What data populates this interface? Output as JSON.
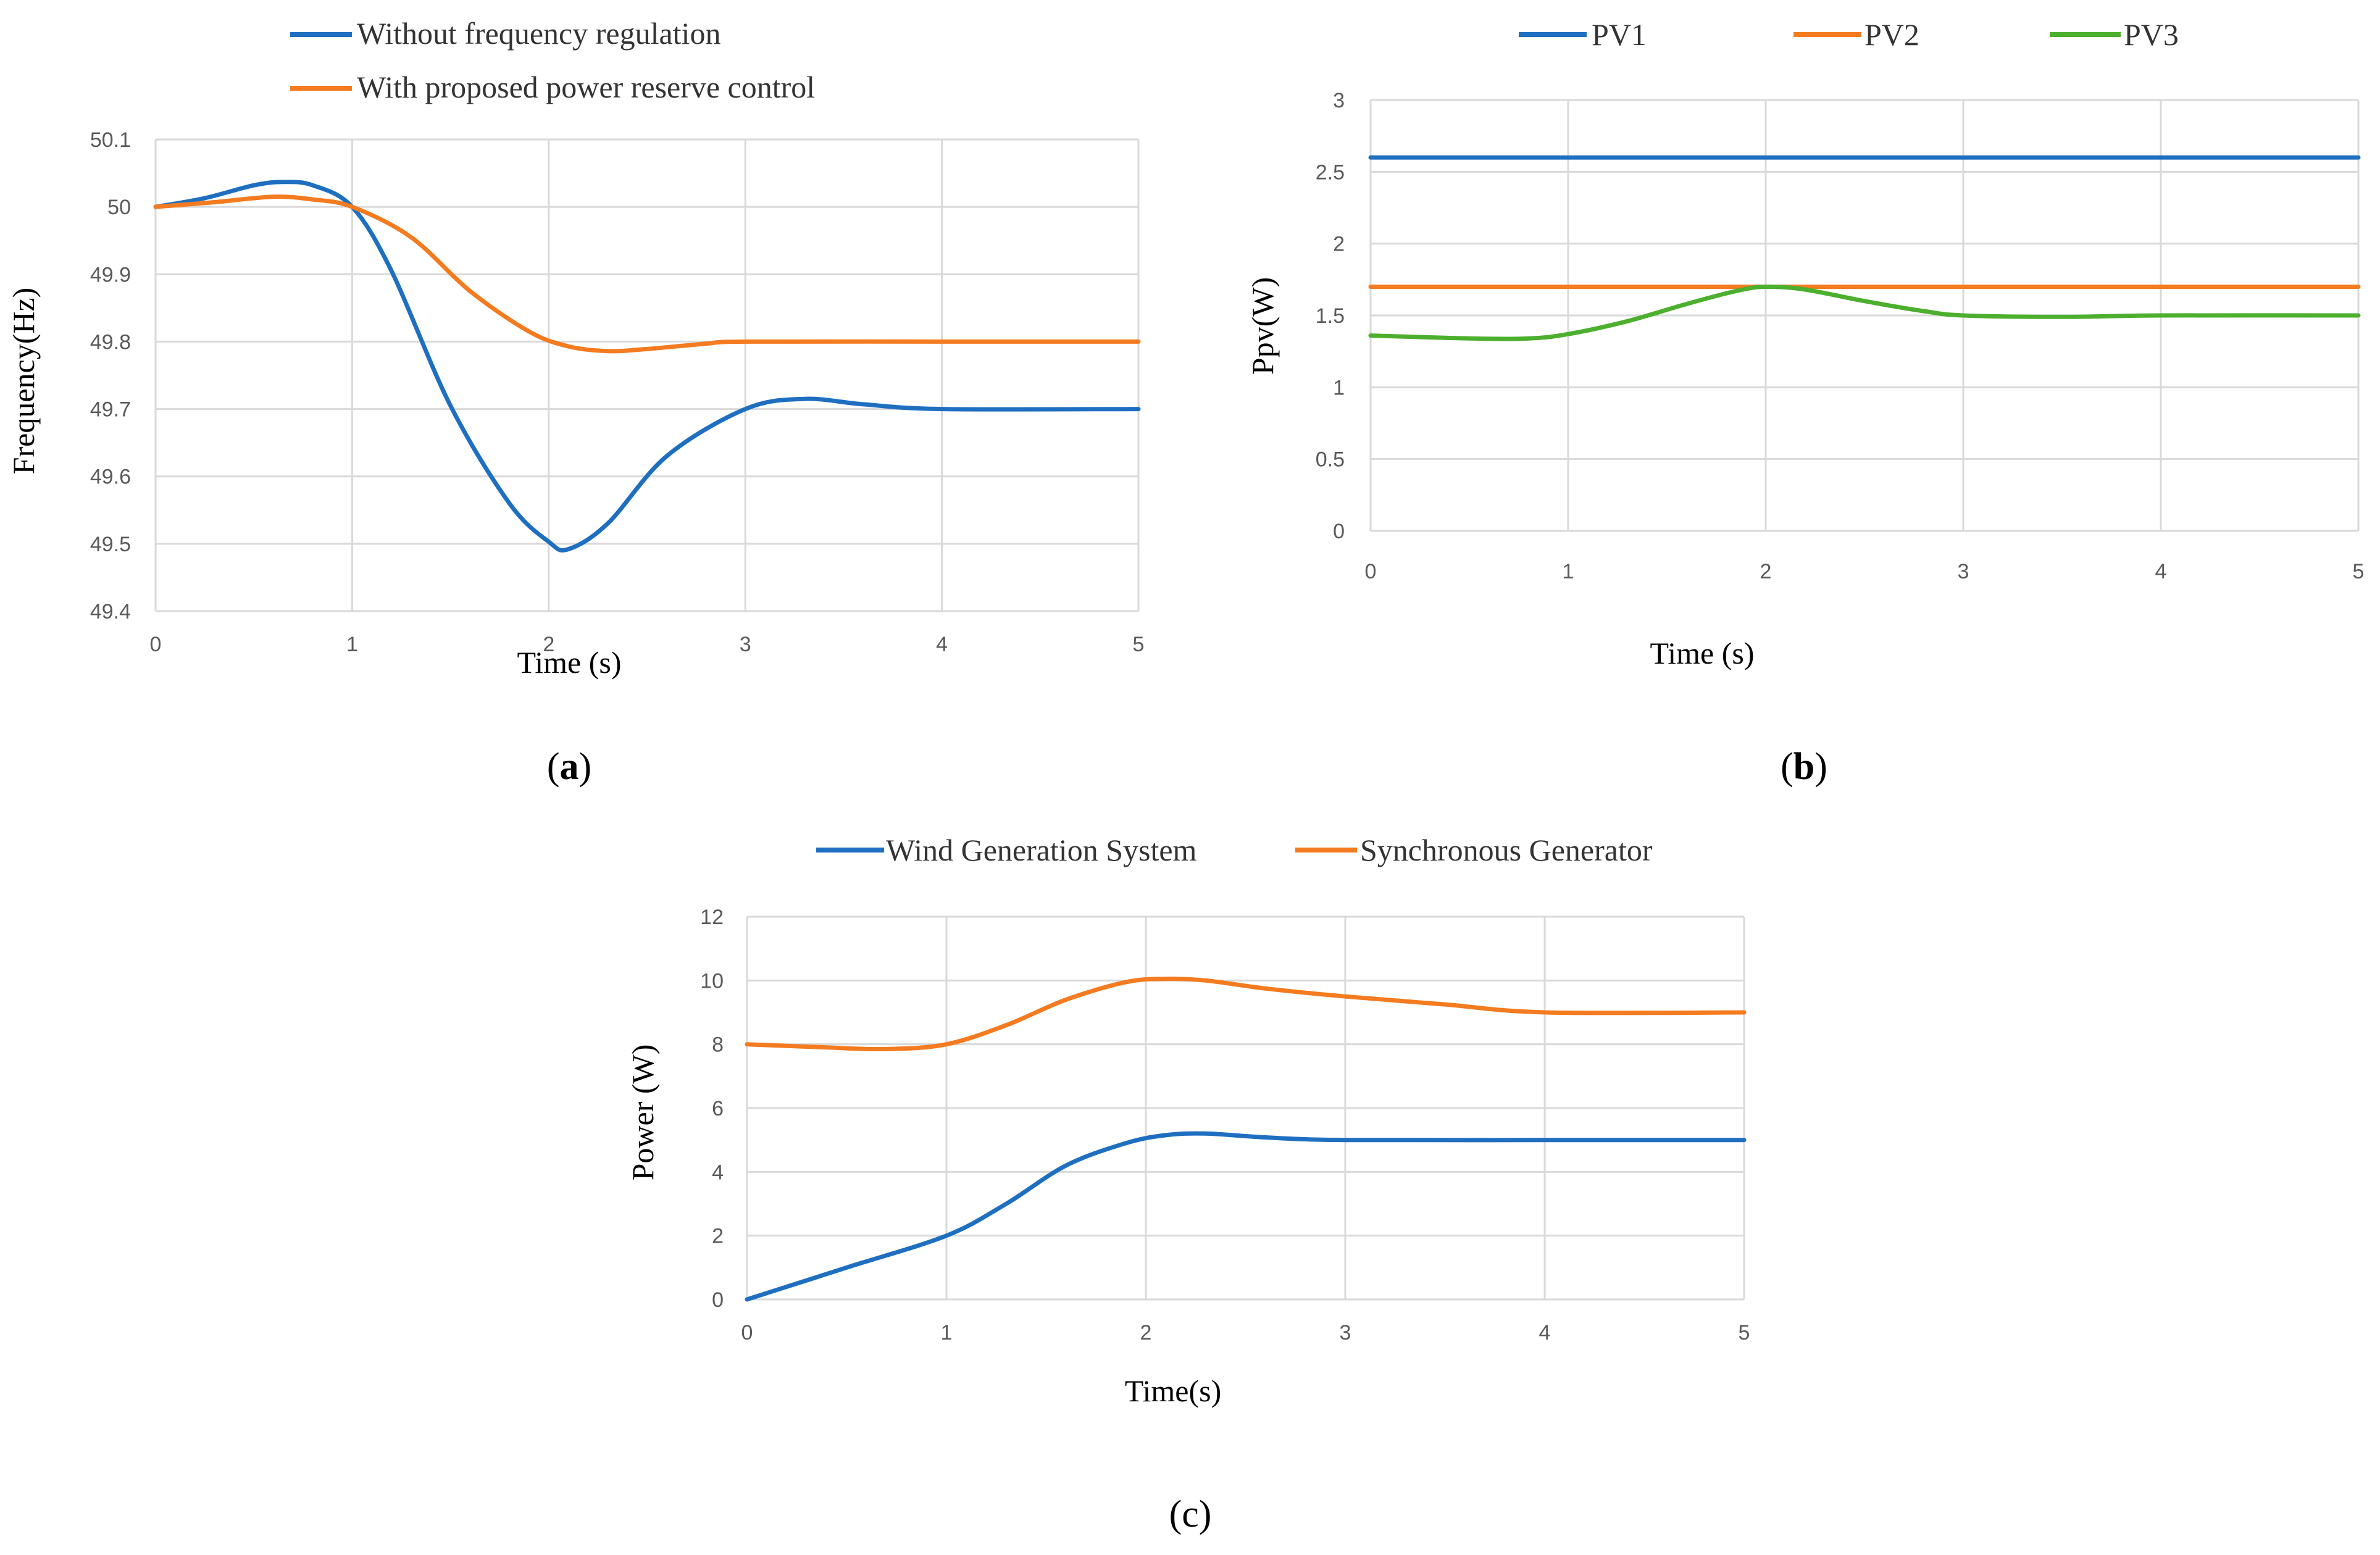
{
  "chart_data": [
    {
      "id": "a",
      "type": "line",
      "caption": "a",
      "xlabel": "Time (s)",
      "ylabel": "Frequency(Hz)",
      "xlim": [
        0,
        5
      ],
      "ylim": [
        49.4,
        50.1
      ],
      "xticks": [
        "0",
        "1",
        "2",
        "3",
        "4",
        "5"
      ],
      "yticks": [
        "49.4",
        "49.5",
        "49.6",
        "49.7",
        "49.8",
        "49.9",
        "50",
        "50.1"
      ],
      "grid": true,
      "legend": "top",
      "series": [
        {
          "name": "Without frequency regulation",
          "color": "#1f6fc1",
          "x": [
            0,
            0.25,
            0.5,
            0.65,
            0.8,
            1.0,
            1.2,
            1.5,
            1.8,
            2.0,
            2.1,
            2.3,
            2.6,
            3.0,
            3.3,
            3.6,
            4.0,
            5.0
          ],
          "y": [
            50.0,
            50.013,
            50.032,
            50.037,
            50.032,
            50.0,
            49.905,
            49.705,
            49.56,
            49.503,
            49.492,
            49.53,
            49.63,
            49.7,
            49.715,
            49.707,
            49.7,
            49.7
          ]
        },
        {
          "name": "With proposed power reserve control",
          "color": "#f47b20",
          "x": [
            0,
            0.3,
            0.6,
            0.8,
            1.0,
            1.3,
            1.6,
            1.9,
            2.1,
            2.3,
            2.5,
            2.8,
            3.0,
            4.0,
            5.0
          ],
          "y": [
            50.0,
            50.007,
            50.015,
            50.011,
            50.0,
            49.955,
            49.875,
            49.815,
            49.793,
            49.786,
            49.789,
            49.797,
            49.8,
            49.8,
            49.8
          ]
        }
      ]
    },
    {
      "id": "b",
      "type": "line",
      "caption": "b",
      "xlabel": "Time (s)",
      "ylabel": "Ppv(W)",
      "xlim": [
        0,
        5
      ],
      "ylim": [
        0,
        3
      ],
      "xticks": [
        "0",
        "1",
        "2",
        "3",
        "4",
        "5"
      ],
      "yticks": [
        "0",
        "0.5",
        "1",
        "1.5",
        "2",
        "2.5",
        "3"
      ],
      "grid": true,
      "legend": "top",
      "series": [
        {
          "name": "PV1",
          "color": "#1f6fc1",
          "x": [
            0,
            5
          ],
          "y": [
            2.6,
            2.6
          ]
        },
        {
          "name": "PV2",
          "color": "#f47b20",
          "x": [
            0,
            5
          ],
          "y": [
            1.7,
            1.7
          ]
        },
        {
          "name": "PV3",
          "color": "#4caf2d",
          "x": [
            0,
            0.5,
            0.8,
            1.0,
            1.3,
            1.6,
            1.85,
            2.0,
            2.2,
            2.5,
            2.8,
            3.0,
            3.5,
            4.0,
            5.0
          ],
          "y": [
            1.36,
            1.34,
            1.34,
            1.37,
            1.46,
            1.58,
            1.67,
            1.7,
            1.68,
            1.6,
            1.53,
            1.5,
            1.49,
            1.5,
            1.5
          ]
        }
      ]
    },
    {
      "id": "c",
      "type": "line",
      "caption": "c",
      "xlabel": "Time(s)",
      "ylabel": "Power (W)",
      "xlim": [
        0,
        5
      ],
      "ylim": [
        0,
        12
      ],
      "xticks": [
        "0",
        "1",
        "2",
        "3",
        "4",
        "5"
      ],
      "yticks": [
        "0",
        "2",
        "4",
        "6",
        "8",
        "10",
        "12"
      ],
      "grid": true,
      "legend": "top",
      "series": [
        {
          "name": "Wind Generation System",
          "color": "#1f6fc1",
          "x": [
            0,
            0.5,
            1.0,
            1.3,
            1.6,
            1.9,
            2.1,
            2.3,
            2.6,
            3.0,
            4.0,
            5.0
          ],
          "y": [
            0,
            1.0,
            2.0,
            3.0,
            4.2,
            4.9,
            5.15,
            5.2,
            5.08,
            5.0,
            5.0,
            5.0
          ]
        },
        {
          "name": "Synchronous Generator",
          "color": "#f47b20",
          "x": [
            0,
            0.4,
            0.7,
            1.0,
            1.3,
            1.6,
            1.9,
            2.1,
            2.3,
            2.6,
            3.0,
            3.5,
            4.0,
            5.0
          ],
          "y": [
            8.0,
            7.9,
            7.85,
            8.0,
            8.6,
            9.4,
            9.95,
            10.05,
            10.0,
            9.75,
            9.5,
            9.25,
            9.0,
            9.0
          ]
        }
      ]
    }
  ]
}
